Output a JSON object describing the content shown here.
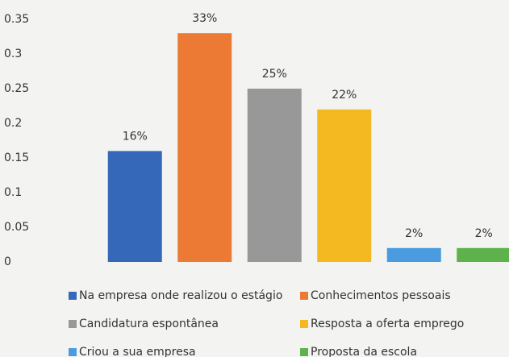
{
  "chart_data": {
    "type": "bar",
    "series": [
      {
        "name": "Na empresa onde realizou o estágio",
        "color": "#3568b8",
        "values": [
          0.16
        ],
        "value_labels": [
          "16%"
        ]
      },
      {
        "name": "Conhecimentos pessoais",
        "color": "#ec7a35",
        "values": [
          0.33
        ],
        "value_labels": [
          "33%"
        ]
      },
      {
        "name": "Candidatura espontânea",
        "color": "#989898",
        "values": [
          0.25
        ],
        "value_labels": [
          "25%"
        ]
      },
      {
        "name": "Resposta a oferta emprego",
        "color": "#f4b821",
        "values": [
          0.22
        ],
        "value_labels": [
          "22%"
        ]
      },
      {
        "name": "Criou a sua empresa",
        "color": "#4a9be0",
        "values": [
          0.02
        ],
        "value_labels": [
          "2%"
        ]
      },
      {
        "name": "Proposta da escola",
        "color": "#5db24c",
        "values": [
          0.02
        ],
        "value_labels": [
          "2%"
        ]
      }
    ],
    "ylim": [
      0,
      0.35
    ],
    "yticks": [
      0,
      0.05,
      0.1,
      0.15,
      0.2,
      0.25,
      0.3,
      0.35
    ]
  }
}
